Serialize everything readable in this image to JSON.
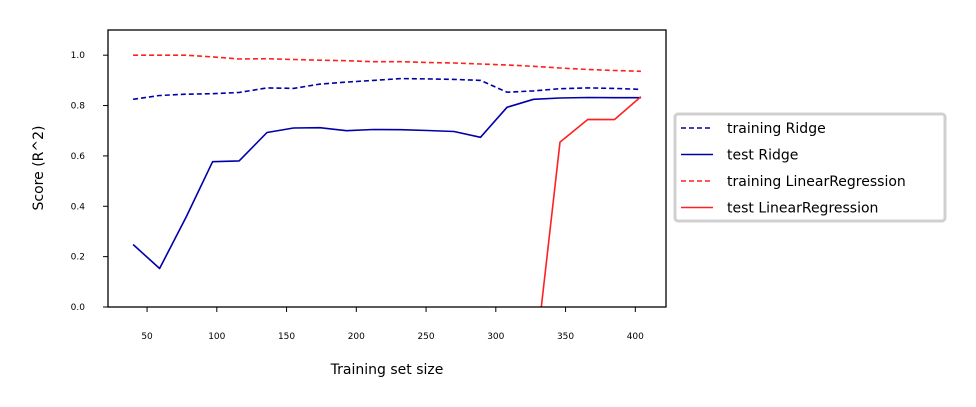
{
  "chart_data": {
    "type": "line",
    "title": "",
    "xlabel": "Training set size",
    "ylabel": "Score (R^2)",
    "xlim": [
      22,
      422
    ],
    "ylim": [
      0,
      1.1
    ],
    "xticks": [
      50,
      100,
      150,
      200,
      250,
      300,
      350,
      400
    ],
    "yticks": [
      0.0,
      0.2,
      0.4,
      0.6,
      0.8,
      1.0
    ],
    "xtick_labels": [
      "50",
      "100",
      "150",
      "200",
      "250",
      "300",
      "350",
      "400"
    ],
    "ytick_labels": [
      "0.0",
      "0.2",
      "0.4",
      "0.6",
      "0.8",
      "1.0"
    ],
    "grid": false,
    "legend_position": "right, outside plot",
    "series": [
      {
        "name": "training Ridge",
        "color": "#0000aa",
        "style": "dashed",
        "x": [
          40,
          59,
          78,
          97,
          116,
          136,
          155,
          174,
          193,
          212,
          232,
          251,
          270,
          289,
          308,
          327,
          346,
          366,
          385,
          404
        ],
        "y": [
          0.825,
          0.84,
          0.845,
          0.847,
          0.852,
          0.87,
          0.868,
          0.885,
          0.893,
          0.9,
          0.907,
          0.906,
          0.904,
          0.9,
          0.853,
          0.858,
          0.867,
          0.87,
          0.868,
          0.864
        ]
      },
      {
        "name": "test Ridge",
        "color": "#0000aa",
        "style": "solid",
        "x": [
          40,
          59,
          78,
          97,
          116,
          136,
          155,
          174,
          193,
          212,
          232,
          251,
          270,
          289,
          308,
          327,
          346,
          366,
          385,
          404
        ],
        "y": [
          0.248,
          0.153,
          0.357,
          0.577,
          0.58,
          0.693,
          0.711,
          0.712,
          0.7,
          0.705,
          0.704,
          0.701,
          0.697,
          0.674,
          0.793,
          0.825,
          0.83,
          0.832,
          0.831,
          0.831
        ]
      },
      {
        "name": "training LinearRegression",
        "color": "#ff2020",
        "style": "dashed",
        "x": [
          40,
          59,
          78,
          97,
          116,
          136,
          155,
          174,
          193,
          212,
          232,
          251,
          270,
          289,
          308,
          327,
          346,
          366,
          385,
          404
        ],
        "y": [
          1.0,
          1.0,
          1.0,
          0.993,
          0.985,
          0.986,
          0.983,
          0.98,
          0.978,
          0.974,
          0.974,
          0.971,
          0.969,
          0.965,
          0.961,
          0.956,
          0.949,
          0.943,
          0.939,
          0.936
        ]
      },
      {
        "name": "test LinearRegression",
        "color": "#ff2020",
        "style": "solid",
        "x": [
          328.5,
          346,
          366,
          385,
          404
        ],
        "y": [
          -0.2,
          0.655,
          0.745,
          0.744,
          0.835
        ]
      }
    ]
  }
}
